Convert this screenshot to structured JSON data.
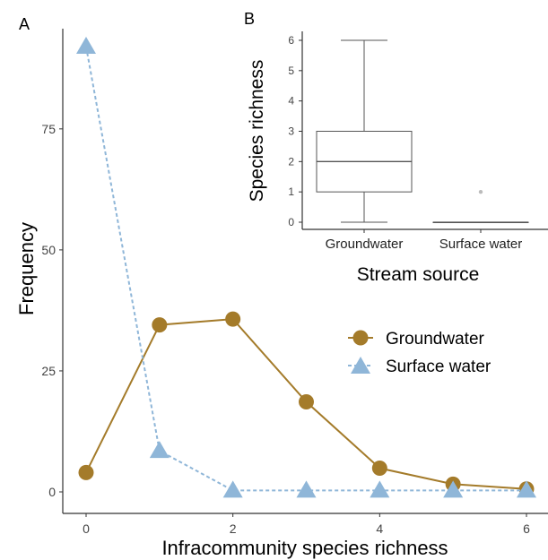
{
  "chart_data": [
    {
      "panel_label": "A",
      "type": "line",
      "xlabel": "Infracommunity species richness",
      "ylabel": "Frequency",
      "xlim": [
        0,
        6
      ],
      "ylim": [
        0,
        92
      ],
      "x_ticks": [
        0,
        2,
        4,
        6
      ],
      "y_ticks": [
        0,
        25,
        50,
        75
      ],
      "grid": false,
      "legend_position": "center-right",
      "series": [
        {
          "name": "Groundwater",
          "color": "#A47B2A",
          "marker": "circle",
          "line_style": "solid",
          "x": [
            0,
            1,
            2,
            3,
            4,
            5,
            6
          ],
          "values": [
            4,
            34.5,
            35.7,
            18.6,
            4.9,
            1.6,
            0.6
          ]
        },
        {
          "name": "Surface water",
          "color": "#8FB6D8",
          "marker": "triangle",
          "line_style": "dashed",
          "x": [
            0,
            1,
            2,
            3,
            4,
            5,
            6
          ],
          "values": [
            92,
            8.5,
            0.3,
            0.3,
            0.3,
            0.3,
            0.3
          ]
        }
      ]
    },
    {
      "panel_label": "B",
      "type": "box",
      "xlabel": "Stream source",
      "ylabel": "Species richness",
      "ylim": [
        0,
        6
      ],
      "y_ticks": [
        0,
        1,
        2,
        3,
        4,
        5,
        6
      ],
      "grid": false,
      "categories": [
        "Groundwater",
        "Surface water"
      ],
      "boxes": [
        {
          "category": "Groundwater",
          "min": 0,
          "q1": 1,
          "median": 2,
          "q3": 3,
          "max": 6,
          "outliers": []
        },
        {
          "category": "Surface water",
          "min": 0,
          "q1": 0,
          "median": 0,
          "q3": 0,
          "max": 0,
          "outliers": [
            1
          ]
        }
      ]
    }
  ]
}
